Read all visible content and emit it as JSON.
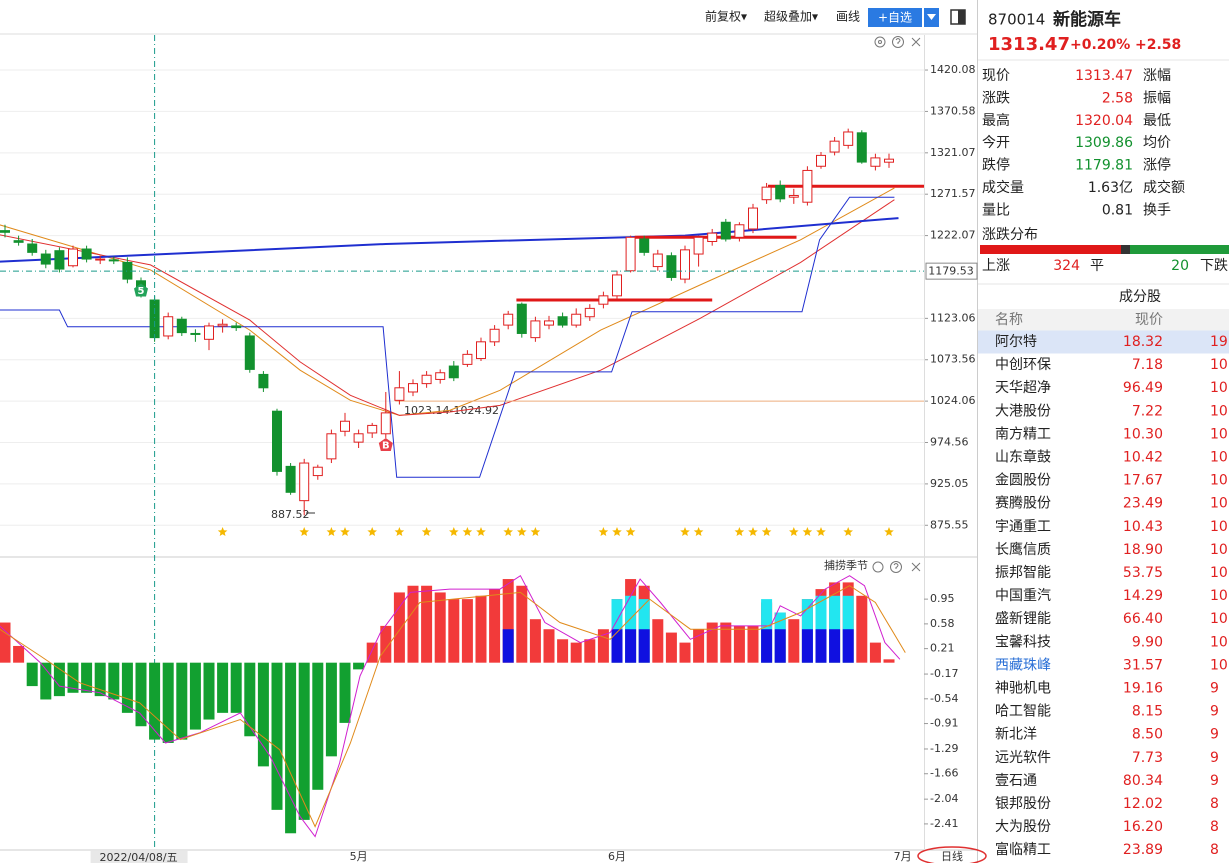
{
  "toolbar": {
    "items": [
      "前复权▾",
      "超级叠加▾",
      "画线"
    ],
    "button": "+自选"
  },
  "chart_data": {
    "type": "candlestick",
    "ylim": [
      840,
      1462
    ],
    "yticks": [
      1420.08,
      1370.58,
      1321.07,
      1271.57,
      1222.07,
      1123.06,
      1073.56,
      1024.06,
      974.56,
      925.05,
      875.55
    ],
    "grid": true,
    "categories": [
      null,
      null,
      null,
      null,
      null,
      null,
      null,
      null,
      null,
      null,
      null,
      null,
      null,
      null,
      null,
      null,
      null,
      null,
      null,
      null,
      null,
      null,
      null,
      null,
      null,
      null,
      "5月",
      null,
      null,
      null,
      null,
      null,
      null,
      null,
      null,
      null,
      null,
      null,
      null,
      null,
      null,
      null,
      null,
      null,
      null,
      "6月",
      null,
      null,
      null,
      null,
      null,
      null,
      null,
      null,
      null,
      null,
      null,
      null,
      null,
      null,
      null,
      null,
      null,
      null,
      null,
      null,
      "7月"
    ],
    "open": [
      1228,
      1216,
      1212,
      1200,
      1204,
      1186,
      1206,
      1193,
      1193,
      1190,
      1168,
      1145,
      1102,
      1122,
      1105,
      1098,
      1114,
      1114,
      1102,
      1056,
      1012,
      946,
      905,
      935,
      955,
      988,
      975,
      986,
      985,
      1025,
      1035,
      1045,
      1050,
      1066,
      1068,
      1075,
      1095,
      1115,
      1140,
      1100,
      1115,
      1125,
      1115,
      1125,
      1140,
      1150,
      1180,
      1218,
      1185,
      1198,
      1170,
      1200,
      1215,
      1238,
      1220,
      1230,
      1265,
      1282,
      1268,
      1262,
      1305,
      1322,
      1330,
      1345,
      1305,
      1309.86,
      null
    ],
    "high": [
      1235,
      1222,
      1218,
      1205,
      1208,
      1210,
      1210,
      1198,
      1197,
      1196,
      1172,
      1150,
      1130,
      1125,
      1110,
      1118,
      1122,
      1118,
      1106,
      1060,
      1015,
      950,
      955,
      948,
      990,
      1010,
      990,
      998,
      1035,
      1060,
      1050,
      1060,
      1062,
      1072,
      1085,
      1100,
      1115,
      1132,
      1142,
      1125,
      1126,
      1130,
      1135,
      1140,
      1155,
      1180,
      1222,
      1222,
      1205,
      1202,
      1210,
      1222,
      1230,
      1242,
      1238,
      1260,
      1285,
      1288,
      1278,
      1305,
      1322,
      1340,
      1350,
      1348,
      1320,
      1320.04,
      null
    ],
    "low": [
      1220,
      1210,
      1198,
      1183,
      1178,
      1184,
      1190,
      1188,
      1188,
      1165,
      1148,
      1095,
      1098,
      1102,
      1095,
      1085,
      1106,
      1108,
      1058,
      1035,
      935,
      912,
      887.52,
      930,
      950,
      982,
      968,
      980,
      980,
      1020,
      1030,
      1040,
      1045,
      1048,
      1065,
      1072,
      1090,
      1110,
      1100,
      1095,
      1110,
      1112,
      1112,
      1120,
      1135,
      1145,
      1178,
      1198,
      1180,
      1168,
      1165,
      1185,
      1210,
      1215,
      1215,
      1225,
      1260,
      1262,
      1260,
      1258,
      1302,
      1318,
      1326,
      1308,
      1300,
      1303,
      null
    ],
    "close": [
      1226,
      1214,
      1202,
      1188,
      1182,
      1206,
      1194,
      1194,
      1192,
      1170,
      1150,
      1100,
      1125,
      1106,
      1104,
      1114,
      1116,
      1112,
      1062,
      1040,
      940,
      915,
      950,
      945,
      985,
      1000,
      985,
      995,
      1010,
      1040,
      1045,
      1055,
      1058,
      1052,
      1080,
      1095,
      1110,
      1128,
      1105,
      1120,
      1120,
      1115,
      1128,
      1135,
      1150,
      1175,
      1220,
      1202,
      1200,
      1172,
      1205,
      1220,
      1225,
      1218,
      1235,
      1255,
      1280,
      1266,
      1270,
      1300,
      1318,
      1335,
      1346,
      1310,
      1315,
      1313.47,
      null
    ],
    "up_color": "#e02020",
    "down_color": "#12912e",
    "lines": [
      {
        "color": "#e08a1a",
        "width": 1,
        "x": [
          -0.4,
          10.7,
          18,
          21.7,
          25.4,
          29,
          32.7,
          36.4,
          43.8,
          51.1,
          58.5,
          65.4
        ],
        "values": [
          1235,
          1181,
          1109,
          1061,
          1025,
          1007,
          1013,
          1037,
          1109,
          1163,
          1217,
          1279
        ]
      },
      {
        "color": "#e03030",
        "width": 1,
        "x": [
          -0.4,
          10.7,
          18,
          21.7,
          25.4,
          29,
          32.7,
          36.4,
          43.8,
          51.1,
          58.5,
          65.4
        ],
        "values": [
          1223,
          1187,
          1121,
          1071,
          1031,
          1007,
          1011,
          1019,
          1061,
          1123,
          1190,
          1265
        ]
      },
      {
        "color": "#1f2fd0",
        "width": 2,
        "x": [
          -0.4,
          28,
          50,
          65.7
        ],
        "values": [
          1191,
          1212,
          1222,
          1243
        ]
      },
      {
        "color": "#1f2fd0",
        "width": 1,
        "x": [
          -0.4,
          4.0,
          4.6,
          27.8,
          28.8,
          34.9,
          37.5,
          44.6,
          46.1,
          58.6,
          59.9,
          62.1,
          65.4
        ],
        "values": [
          1133,
          1133,
          1113,
          1113,
          933,
          933,
          1059,
          1059,
          1131,
          1131,
          1217,
          1268,
          1268
        ]
      },
      {
        "color": "#e01818",
        "width": 3,
        "x": [
          37.6,
          52
        ],
        "values": [
          1145,
          1145
        ]
      },
      {
        "color": "#e01818",
        "width": 3,
        "x": [
          46.3,
          58.2
        ],
        "values": [
          1220,
          1220
        ]
      },
      {
        "color": "#e01818",
        "width": 3,
        "x": [
          56.1,
          67.7
        ],
        "values": [
          1281,
          1281
        ]
      },
      {
        "color": "#f0b080",
        "width": 1,
        "x": [
          28.7,
          67.7
        ],
        "values": [
          1024.06,
          1024.06
        ]
      }
    ],
    "markers": [
      {
        "index": 10,
        "text": "5",
        "color": "#23a35a",
        "side": "high"
      },
      {
        "index": 28,
        "text": "B",
        "color": "#e8404a",
        "side": "low"
      }
    ],
    "annotations": [
      "887.52",
      "1023.14-1024.92"
    ],
    "signal_index": [
      16,
      22,
      24,
      25,
      27,
      29,
      31,
      33,
      34,
      35,
      37,
      38,
      39,
      44,
      45,
      46,
      50,
      51,
      54,
      55,
      56,
      58,
      59,
      60,
      62,
      65
    ],
    "signal_color": "#f5b800",
    "crosshair": {
      "index": 11,
      "value": 1179.53,
      "label": "2022/04/08/五"
    },
    "period": "日线"
  },
  "indicator": {
    "type": "histogram",
    "title": "捕捞季节",
    "ylim": [
      -2.8,
      1.49
    ],
    "yticks": [
      0.95,
      0.58,
      0.21,
      -0.17,
      -0.54,
      -0.91,
      -1.29,
      -1.66,
      -2.04,
      -2.41
    ],
    "values": [
      0.6,
      0.25,
      -0.35,
      -0.55,
      -0.5,
      -0.45,
      -0.45,
      -0.5,
      -0.55,
      -0.75,
      -0.95,
      -1.15,
      -1.2,
      -1.15,
      -1.0,
      -0.85,
      -0.75,
      -0.75,
      -1.1,
      -1.55,
      -2.2,
      -2.55,
      -2.35,
      -1.9,
      -1.4,
      -0.9,
      -0.1,
      0.3,
      0.55,
      1.05,
      1.15,
      1.15,
      1.05,
      0.95,
      0.95,
      1.0,
      1.1,
      1.25,
      1.15,
      0.65,
      0.5,
      0.35,
      0.3,
      0.35,
      0.5,
      0.95,
      1.25,
      1.15,
      0.65,
      0.45,
      0.3,
      0.5,
      0.6,
      0.6,
      0.55,
      0.55,
      0.9,
      0.75,
      0.65,
      0.95,
      1.1,
      1.2,
      1.2,
      1.0,
      0.3,
      0.05,
      null
    ],
    "up_color": "#f23a3a",
    "down_color": "#12a030",
    "overlays": [
      {
        "color": "#22e6f0",
        "x": [
          45,
          46,
          47,
          56,
          57,
          59,
          60,
          61,
          62
        ],
        "values": [
          0.95,
          1.0,
          0.95,
          0.95,
          0.75,
          0.95,
          1.0,
          1.0,
          1.0
        ]
      },
      {
        "color": "#1010e0",
        "x": [
          37,
          45,
          46,
          47,
          56,
          57,
          59,
          60,
          61,
          62
        ],
        "values": [
          0.5,
          0.5,
          0.5,
          0.5,
          0.5,
          0.5,
          0.5,
          0.5,
          0.5,
          0.5
        ]
      }
    ],
    "lines": [
      {
        "color": "#d020d0",
        "x": [
          -0.4,
          2.6,
          4.0,
          7.0,
          9.9,
          11.8,
          14.3,
          17.3,
          19.5,
          21.7,
          22.8,
          24.6,
          26.1,
          27.6,
          29.8,
          32.7,
          36.4,
          37.9,
          39.7,
          42.3,
          44.5,
          46.7,
          48.2,
          50.4,
          52.6,
          56.3,
          57.0,
          58.5,
          60.3,
          62.1,
          63.2,
          64.7,
          65.8
        ],
        "values": [
          0.55,
          0.0,
          -0.35,
          -0.45,
          -0.75,
          -1.2,
          -1.05,
          -0.75,
          -1.4,
          -2.3,
          -2.6,
          -1.5,
          -0.2,
          0.45,
          1.05,
          1.1,
          1.1,
          1.3,
          0.6,
          0.3,
          0.45,
          1.25,
          0.9,
          0.35,
          0.55,
          0.55,
          0.85,
          0.7,
          1.1,
          1.3,
          1.15,
          0.3,
          0.05
        ]
      },
      {
        "color": "#e08a1a",
        "x": [
          -0.4,
          2.6,
          5.5,
          9.9,
          12.9,
          17.3,
          20.2,
          22.8,
          25.4,
          27.6,
          30.5,
          37.9,
          40.8,
          44.5,
          47.4,
          50.4,
          55.5,
          58.5,
          62.1,
          64.0,
          66.2
        ],
        "values": [
          0.5,
          0.1,
          -0.3,
          -0.6,
          -1.15,
          -0.85,
          -1.3,
          -2.45,
          -1.2,
          0.1,
          0.9,
          1.05,
          0.6,
          0.35,
          0.95,
          0.5,
          0.5,
          0.75,
          1.15,
          0.9,
          0.15
        ]
      }
    ]
  },
  "quote": {
    "code": "870014",
    "name": "新能源车",
    "price": "1313.47",
    "change_pct": "+0.20%",
    "change": "+2.58",
    "color": "#e02020"
  },
  "stats": [
    {
      "label": "现价",
      "value": "1313.47",
      "label2": "涨幅",
      "color": "#e02020"
    },
    {
      "label": "涨跌",
      "value": "2.58",
      "label2": "振幅",
      "color": "#e02020"
    },
    {
      "label": "最高",
      "value": "1320.04",
      "label2": "最低",
      "color": "#e02020"
    },
    {
      "label": "今开",
      "value": "1309.86",
      "label2": "均价",
      "color": "#12912e"
    },
    {
      "label": "跌停",
      "value": "1179.81",
      "label2": "涨停",
      "color": "#12912e"
    },
    {
      "label": "成交量",
      "value": "1.63亿",
      "label2": "成交额",
      "color": "#222"
    },
    {
      "label": "量比",
      "value": "0.81",
      "label2": "换手",
      "color": "#222"
    }
  ],
  "distribution": {
    "title": "涨跌分布",
    "up_label": "上涨",
    "up": "324",
    "flat_label": "平",
    "down": "20",
    "down_label": "下跌"
  },
  "constituents": {
    "title": "成分股",
    "columns": [
      "名称",
      "现价"
    ],
    "rows": [
      [
        "阿尔特",
        "18.32",
        "19"
      ],
      [
        "中创环保",
        "7.18",
        "10"
      ],
      [
        "天华超净",
        "96.49",
        "10"
      ],
      [
        "大港股份",
        "7.22",
        "10"
      ],
      [
        "南方精工",
        "10.30",
        "10"
      ],
      [
        "山东章鼓",
        "10.42",
        "10"
      ],
      [
        "金圆股份",
        "17.67",
        "10"
      ],
      [
        "赛腾股份",
        "23.49",
        "10"
      ],
      [
        "宇通重工",
        "10.43",
        "10"
      ],
      [
        "长鹰信质",
        "18.90",
        "10"
      ],
      [
        "振邦智能",
        "53.75",
        "10"
      ],
      [
        "中国重汽",
        "14.29",
        "10"
      ],
      [
        "盛新锂能",
        "66.40",
        "10"
      ],
      [
        "宝馨科技",
        "9.90",
        "10"
      ],
      [
        "西藏珠峰",
        "31.57",
        "10"
      ],
      [
        "神驰机电",
        "19.16",
        "9"
      ],
      [
        "哈工智能",
        "8.15",
        "9"
      ],
      [
        "新北洋",
        "8.50",
        "9"
      ],
      [
        "远光软件",
        "7.73",
        "9"
      ],
      [
        "壹石通",
        "80.34",
        "9"
      ],
      [
        "银邦股份",
        "12.02",
        "8"
      ],
      [
        "大为股份",
        "16.20",
        "8"
      ],
      [
        "富临精工",
        "23.89",
        "8"
      ]
    ],
    "selected": 0,
    "blue_row": 14
  }
}
